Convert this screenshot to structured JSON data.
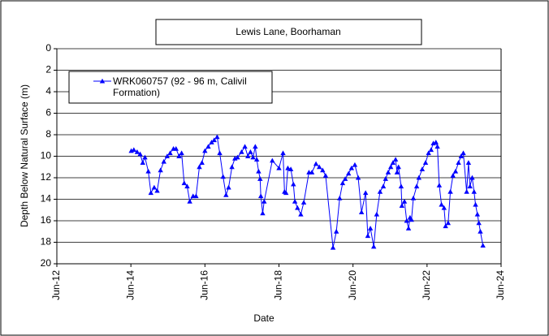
{
  "chart_data": {
    "type": "line",
    "title": "Lewis Lane, Boorhaman",
    "x_label": "Date",
    "y_label": "Depth Below Natural Surface (m)",
    "xlim": [
      2012.42,
      2024.42
    ],
    "xticks": [
      {
        "value": 2012.42,
        "label": "Jun-12"
      },
      {
        "value": 2014.42,
        "label": "Jun-14"
      },
      {
        "value": 2016.42,
        "label": "Jun-16"
      },
      {
        "value": 2018.42,
        "label": "Jun-18"
      },
      {
        "value": 2020.42,
        "label": "Jun-20"
      },
      {
        "value": 2022.42,
        "label": "Jun-22"
      },
      {
        "value": 2024.42,
        "label": "Jun-24"
      }
    ],
    "ylim": [
      0,
      20
    ],
    "y_reversed": true,
    "yticks": [
      0,
      2,
      4,
      6,
      8,
      10,
      12,
      14,
      16,
      18,
      20
    ],
    "grid": true,
    "legend": "upper left",
    "x": [
      2014.43,
      2014.5,
      2014.59,
      2014.67,
      2014.74,
      2014.8,
      2014.89,
      2014.96,
      2015.05,
      2015.13,
      2015.22,
      2015.31,
      2015.4,
      2015.48,
      2015.57,
      2015.64,
      2015.72,
      2015.79,
      2015.86,
      2015.94,
      2016.01,
      2016.1,
      2016.18,
      2016.27,
      2016.34,
      2016.42,
      2016.51,
      2016.6,
      2016.67,
      2016.75,
      2016.82,
      2016.91,
      2016.99,
      2017.06,
      2017.15,
      2017.23,
      2017.3,
      2017.41,
      2017.5,
      2017.58,
      2017.65,
      2017.72,
      2017.78,
      2017.82,
      2017.87,
      2017.91,
      2017.93,
      2017.98,
      2018.02,
      2018.24,
      2018.42,
      2018.53,
      2018.57,
      2018.61,
      2018.66,
      2018.74,
      2018.81,
      2018.85,
      2018.92,
      2019.01,
      2019.09,
      2019.23,
      2019.31,
      2019.42,
      2019.51,
      2019.6,
      2019.68,
      2019.88,
      2019.97,
      2020.06,
      2020.14,
      2020.21,
      2020.3,
      2020.38,
      2020.47,
      2020.56,
      2020.65,
      2020.76,
      2020.82,
      2020.89,
      2020.98,
      2021.06,
      2021.15,
      2021.24,
      2021.3,
      2021.37,
      2021.44,
      2021.5,
      2021.57,
      2021.61,
      2021.65,
      2021.72,
      2021.74,
      2021.81,
      2021.87,
      2021.92,
      2021.96,
      2022.0,
      2022.05,
      2022.14,
      2022.2,
      2022.29,
      2022.38,
      2022.46,
      2022.53,
      2022.59,
      2022.66,
      2022.7,
      2022.75,
      2022.81,
      2022.88,
      2022.92,
      2022.99,
      2023.05,
      2023.12,
      2023.19,
      2023.27,
      2023.34,
      2023.4,
      2023.49,
      2023.54,
      2023.58,
      2023.64,
      2023.69,
      2023.73,
      2023.78,
      2023.82,
      2023.86,
      2023.93
    ],
    "series": [
      {
        "name": "WRK060757 (92 - 96 m, Calivil Formation)",
        "color": "#0000ff",
        "values": [
          9.5,
          9.4,
          9.6,
          9.8,
          10.6,
          10.1,
          11.4,
          13.4,
          12.9,
          13.2,
          11.3,
          10.5,
          10.0,
          9.7,
          9.3,
          9.3,
          10.0,
          9.7,
          12.5,
          12.8,
          14.2,
          13.7,
          13.7,
          11.0,
          10.6,
          9.5,
          9.1,
          8.7,
          8.5,
          8.2,
          9.7,
          11.9,
          13.6,
          12.9,
          11.0,
          10.2,
          10.1,
          9.6,
          9.1,
          10.0,
          9.6,
          10.1,
          9.1,
          10.3,
          11.4,
          12.1,
          13.7,
          15.3,
          14.2,
          10.4,
          11.1,
          9.7,
          13.3,
          13.4,
          11.1,
          11.2,
          12.6,
          14.2,
          14.8,
          15.4,
          14.3,
          11.5,
          11.5,
          10.7,
          11.0,
          11.3,
          11.8,
          18.5,
          17.0,
          13.9,
          12.5,
          12.1,
          11.6,
          11.1,
          10.8,
          12.0,
          15.2,
          13.4,
          17.4,
          16.7,
          18.4,
          15.4,
          13.3,
          12.8,
          12.1,
          11.5,
          11.0,
          10.6,
          10.3,
          11.5,
          11.0,
          12.8,
          14.6,
          14.2,
          16.0,
          16.7,
          15.7,
          15.9,
          13.9,
          12.8,
          12.0,
          11.2,
          10.6,
          9.7,
          9.4,
          8.8,
          8.7,
          9.1,
          12.7,
          14.5,
          14.8,
          16.5,
          16.2,
          13.3,
          11.8,
          11.4,
          10.6,
          10.0,
          9.7,
          13.3,
          10.6,
          12.8,
          12.0,
          13.3,
          14.5,
          15.4,
          16.2,
          17.0,
          18.3
        ]
      }
    ]
  }
}
